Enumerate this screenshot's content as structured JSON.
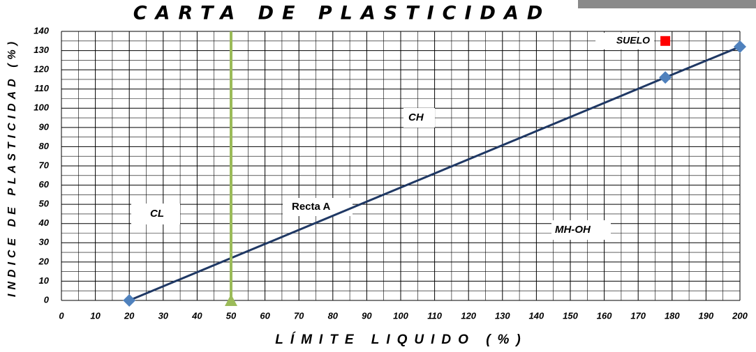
{
  "chart_data": {
    "type": "scatter",
    "title": "CARTA DE PLASTICIDAD",
    "x_label": "LÍMITE LIQUIDO (%)",
    "y_label": "INDICE DE PLASTICIDAD (%)",
    "xlim": [
      0,
      200
    ],
    "ylim": [
      0,
      140
    ],
    "xticks": [
      0,
      10,
      20,
      30,
      40,
      50,
      60,
      70,
      80,
      90,
      100,
      110,
      120,
      130,
      140,
      150,
      160,
      170,
      180,
      190,
      200
    ],
    "yticks": [
      0,
      10,
      20,
      30,
      40,
      50,
      60,
      70,
      80,
      90,
      100,
      110,
      120,
      130,
      140
    ],
    "grid": true,
    "series": [
      {
        "kind": "line-markers",
        "color": "#4f81bd",
        "line_color": "#1f3864",
        "x": [
          20,
          178,
          200
        ],
        "values": [
          0,
          116,
          132
        ]
      },
      {
        "kind": "vertical-line",
        "color": "#9bbb59",
        "x": [
          50,
          50
        ],
        "values": [
          0,
          140
        ]
      },
      {
        "name": "SUELO",
        "kind": "square",
        "color": "#ff0000",
        "x": [
          178
        ],
        "values": [
          135
        ]
      }
    ],
    "annotations": [
      "CL",
      "Recta A",
      "CH",
      "MH-OH"
    ]
  }
}
